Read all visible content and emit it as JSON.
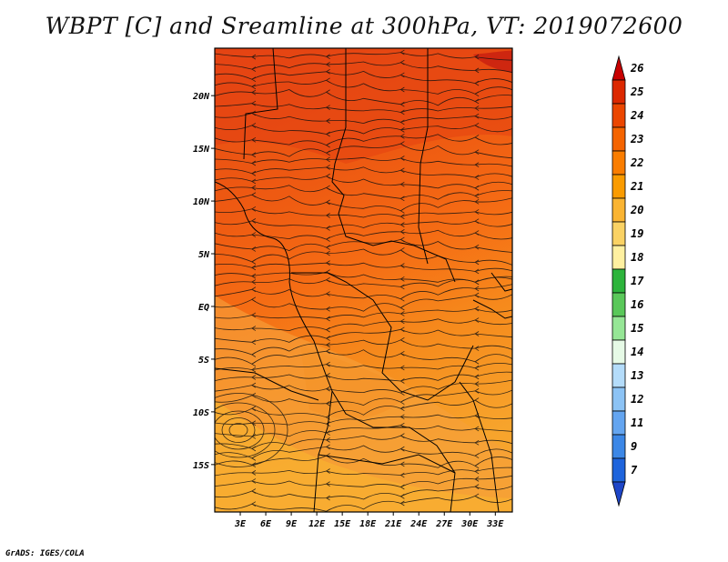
{
  "title": "WBPT [C] and Sreamline at 300hPa, VT: 2019072600",
  "credit": "GrADS: IGES/COLA",
  "map": {
    "lat_labels": [
      {
        "label": "20N",
        "lat": 20
      },
      {
        "label": "15N",
        "lat": 15
      },
      {
        "label": "10N",
        "lat": 10
      },
      {
        "label": "5N",
        "lat": 5
      },
      {
        "label": "EQ",
        "lat": 0
      },
      {
        "label": "5S",
        "lat": -5
      },
      {
        "label": "10S",
        "lat": -10
      },
      {
        "label": "15S",
        "lat": -15
      }
    ],
    "lon_labels": [
      {
        "label": "3E",
        "lon": 3
      },
      {
        "label": "6E",
        "lon": 6
      },
      {
        "label": "9E",
        "lon": 9
      },
      {
        "label": "12E",
        "lon": 12
      },
      {
        "label": "15E",
        "lon": 15
      },
      {
        "label": "18E",
        "lon": 18
      },
      {
        "label": "21E",
        "lon": 21
      },
      {
        "label": "24E",
        "lon": 24
      },
      {
        "label": "27E",
        "lon": 27
      },
      {
        "label": "30E",
        "lon": 30
      },
      {
        "label": "33E",
        "lon": 33
      }
    ],
    "lon_range": [
      0,
      35
    ],
    "lat_range": [
      -19.5,
      24.5
    ]
  },
  "colorbar": {
    "labels": [
      "26",
      "25",
      "24",
      "23",
      "22",
      "21",
      "20",
      "19",
      "18",
      "17",
      "16",
      "15",
      "14",
      "13",
      "12",
      "11",
      "9",
      "7"
    ],
    "colors": [
      "#c80000",
      "#dc2800",
      "#eb4600",
      "#f56400",
      "#fa7d00",
      "#fa9b00",
      "#fab432",
      "#fad264",
      "#fff0a0",
      "#2db43c",
      "#5ac85a",
      "#96e696",
      "#e6fae6",
      "#b4dcfa",
      "#8cc3f5",
      "#64a5f0",
      "#3c87e6",
      "#1e64dc",
      "#1e46c8"
    ]
  }
}
